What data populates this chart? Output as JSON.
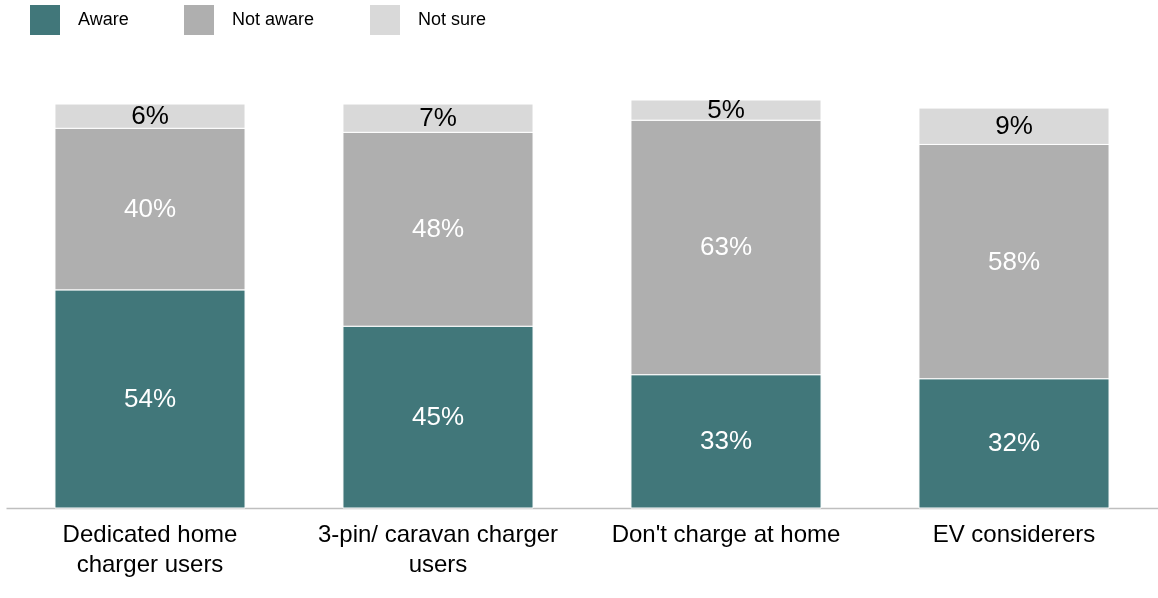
{
  "chart_data": {
    "type": "bar",
    "stacked": true,
    "legend": "top left",
    "grid": false,
    "categories": [
      "Dedicated home charger users",
      "3-pin/ caravan charger users",
      "Don't charge at home",
      "EV considerers"
    ],
    "series": [
      {
        "name": "Aware",
        "color": "#41777a",
        "values": [
          54,
          45,
          33,
          32
        ],
        "value_labels": [
          "54%",
          "45%",
          "33%",
          "32%"
        ]
      },
      {
        "name": "Not aware",
        "color": "#afafaf",
        "values": [
          40,
          48,
          63,
          58
        ],
        "value_labels": [
          "40%",
          "48%",
          "63%",
          "58%"
        ]
      },
      {
        "name": "Not sure",
        "color": "#d9d9d9",
        "values": [
          6,
          7,
          5,
          9
        ],
        "value_labels": [
          "6%",
          "7%",
          "5%",
          "9%"
        ]
      }
    ]
  }
}
